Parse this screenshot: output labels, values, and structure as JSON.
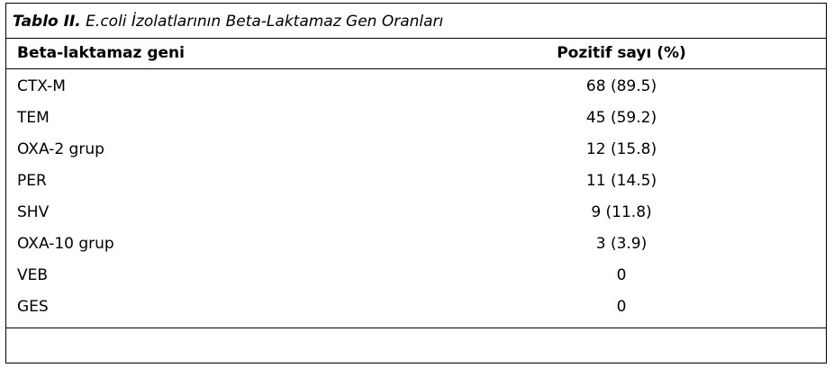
{
  "caption": {
    "label": "Tablo II.",
    "text": "E.coli İzolatlarının Beta-Laktamaz Gen Oranları"
  },
  "table": {
    "headers": [
      "Beta-laktamaz geni",
      "Pozitif sayı (%)"
    ],
    "rows": [
      [
        "CTX-M",
        "68 (89.5)"
      ],
      [
        "TEM",
        "45 (59.2)"
      ],
      [
        "OXA-2 grup",
        "12 (15.8)"
      ],
      [
        "PER",
        "11 (14.5)"
      ],
      [
        "SHV",
        "9 (11.8)"
      ],
      [
        "OXA-10 grup",
        "3 (3.9)"
      ],
      [
        "VEB",
        "0"
      ],
      [
        "GES",
        "0"
      ]
    ]
  }
}
